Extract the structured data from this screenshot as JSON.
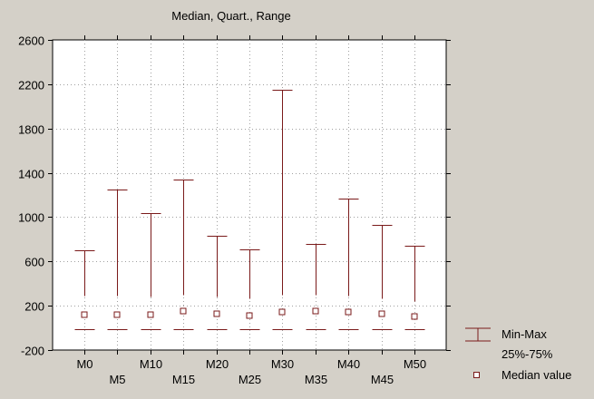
{
  "chart_data": {
    "type": "box",
    "title": "Median, Quart., Range",
    "xlabel": "",
    "ylabel": "",
    "ylim": [
      -200,
      2600
    ],
    "yticks": [
      -200,
      200,
      600,
      1000,
      1400,
      1800,
      2200,
      2600
    ],
    "grid": true,
    "legend_position": "right",
    "categories": [
      "M0",
      "M5",
      "M10",
      "M15",
      "M20",
      "M25",
      "M30",
      "M35",
      "M40",
      "M45",
      "M50"
    ],
    "min": [
      -10,
      -10,
      -10,
      -10,
      -10,
      -10,
      -10,
      -10,
      -10,
      -10,
      -10
    ],
    "q1": [
      -10,
      -10,
      -10,
      -10,
      -10,
      -10,
      -10,
      -10,
      -10,
      -10,
      -10
    ],
    "median": [
      120,
      120,
      120,
      150,
      130,
      110,
      140,
      150,
      140,
      130,
      100
    ],
    "q3": [
      295,
      295,
      285,
      300,
      285,
      265,
      300,
      300,
      290,
      270,
      240
    ],
    "max": [
      700,
      1250,
      1040,
      1340,
      830,
      710,
      2150,
      760,
      1170,
      930,
      740
    ],
    "legend": {
      "minmax": "Min-Max",
      "quartile": "25%-75%",
      "median": "Median value"
    },
    "colors": {
      "whisker": "#7a1a1a",
      "median_marker": "#7a1a1a",
      "background": "#d4d0c8",
      "plot_area": "#ffffff",
      "grid": "#a0a0a0"
    }
  }
}
